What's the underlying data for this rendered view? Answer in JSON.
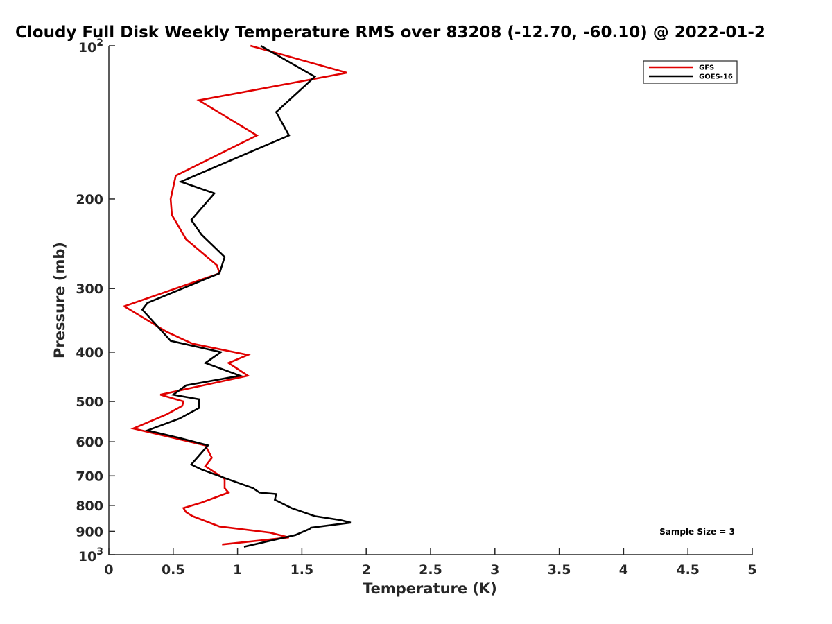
{
  "chart_data": {
    "type": "line",
    "title": "Cloudy Full Disk Weekly Temperature RMS over 83208 (-12.70, -60.10) @ 2022-01-2",
    "xlabel": "Temperature (K)",
    "ylabel": "Pressure (mb)",
    "xlim": [
      0,
      5
    ],
    "ylim": [
      100,
      1000
    ],
    "yscale": "log",
    "y_reversed": true,
    "x_ticks": [
      "0",
      "0.5",
      "1",
      "1.5",
      "2",
      "2.5",
      "3",
      "3.5",
      "4",
      "4.5",
      "5"
    ],
    "y_ticks": [
      {
        "value": 100,
        "base": "10",
        "exp": "2"
      },
      {
        "value": 200,
        "label": "200"
      },
      {
        "value": 300,
        "label": "300"
      },
      {
        "value": 400,
        "label": "400"
      },
      {
        "value": 500,
        "label": "500"
      },
      {
        "value": 600,
        "label": "600"
      },
      {
        "value": 700,
        "label": "700"
      },
      {
        "value": 800,
        "label": "800"
      },
      {
        "value": 900,
        "label": "900"
      },
      {
        "value": 1000,
        "base": "10",
        "exp": "3"
      }
    ],
    "legend": {
      "position": "top-right",
      "entries": [
        "GFS",
        "GOES-16"
      ]
    },
    "annotation": "Sample Size = 3",
    "series": [
      {
        "name": "GFS",
        "color": "#e00000",
        "points": [
          [
            1.1,
            100
          ],
          [
            1.85,
            113
          ],
          [
            0.7,
            128
          ],
          [
            1.15,
            150
          ],
          [
            0.52,
            180
          ],
          [
            0.48,
            200
          ],
          [
            0.49,
            215
          ],
          [
            0.6,
            240
          ],
          [
            0.84,
            270
          ],
          [
            0.86,
            280
          ],
          [
            0.12,
            325
          ],
          [
            0.45,
            365
          ],
          [
            0.65,
            385
          ],
          [
            1.08,
            405
          ],
          [
            0.93,
            420
          ],
          [
            1.08,
            445
          ],
          [
            0.4,
            485
          ],
          [
            0.58,
            500
          ],
          [
            0.57,
            510
          ],
          [
            0.45,
            530
          ],
          [
            0.19,
            565
          ],
          [
            0.75,
            610
          ],
          [
            0.8,
            645
          ],
          [
            0.75,
            670
          ],
          [
            0.9,
            710
          ],
          [
            0.9,
            740
          ],
          [
            0.93,
            755
          ],
          [
            0.72,
            790
          ],
          [
            0.58,
            810
          ],
          [
            0.6,
            825
          ],
          [
            0.65,
            840
          ],
          [
            0.86,
            880
          ],
          [
            1.25,
            905
          ],
          [
            1.4,
            925
          ],
          [
            0.88,
            955
          ]
        ]
      },
      {
        "name": "GOES-16",
        "color": "#000000",
        "points": [
          [
            1.18,
            100
          ],
          [
            1.6,
            115
          ],
          [
            1.3,
            135
          ],
          [
            1.4,
            150
          ],
          [
            0.56,
            185
          ],
          [
            0.82,
            195
          ],
          [
            0.64,
            220
          ],
          [
            0.72,
            235
          ],
          [
            0.9,
            260
          ],
          [
            0.86,
            280
          ],
          [
            0.3,
            320
          ],
          [
            0.26,
            330
          ],
          [
            0.48,
            380
          ],
          [
            0.87,
            400
          ],
          [
            0.75,
            420
          ],
          [
            1.02,
            445
          ],
          [
            0.6,
            465
          ],
          [
            0.5,
            485
          ],
          [
            0.7,
            495
          ],
          [
            0.7,
            515
          ],
          [
            0.55,
            540
          ],
          [
            0.3,
            570
          ],
          [
            0.55,
            590
          ],
          [
            0.77,
            610
          ],
          [
            0.64,
            665
          ],
          [
            0.72,
            680
          ],
          [
            0.92,
            710
          ],
          [
            1.12,
            740
          ],
          [
            1.17,
            755
          ],
          [
            1.3,
            760
          ],
          [
            1.29,
            780
          ],
          [
            1.42,
            810
          ],
          [
            1.6,
            840
          ],
          [
            1.8,
            855
          ],
          [
            1.88,
            865
          ],
          [
            1.57,
            885
          ],
          [
            1.56,
            890
          ],
          [
            1.45,
            915
          ],
          [
            1.05,
            965
          ]
        ]
      }
    ]
  }
}
